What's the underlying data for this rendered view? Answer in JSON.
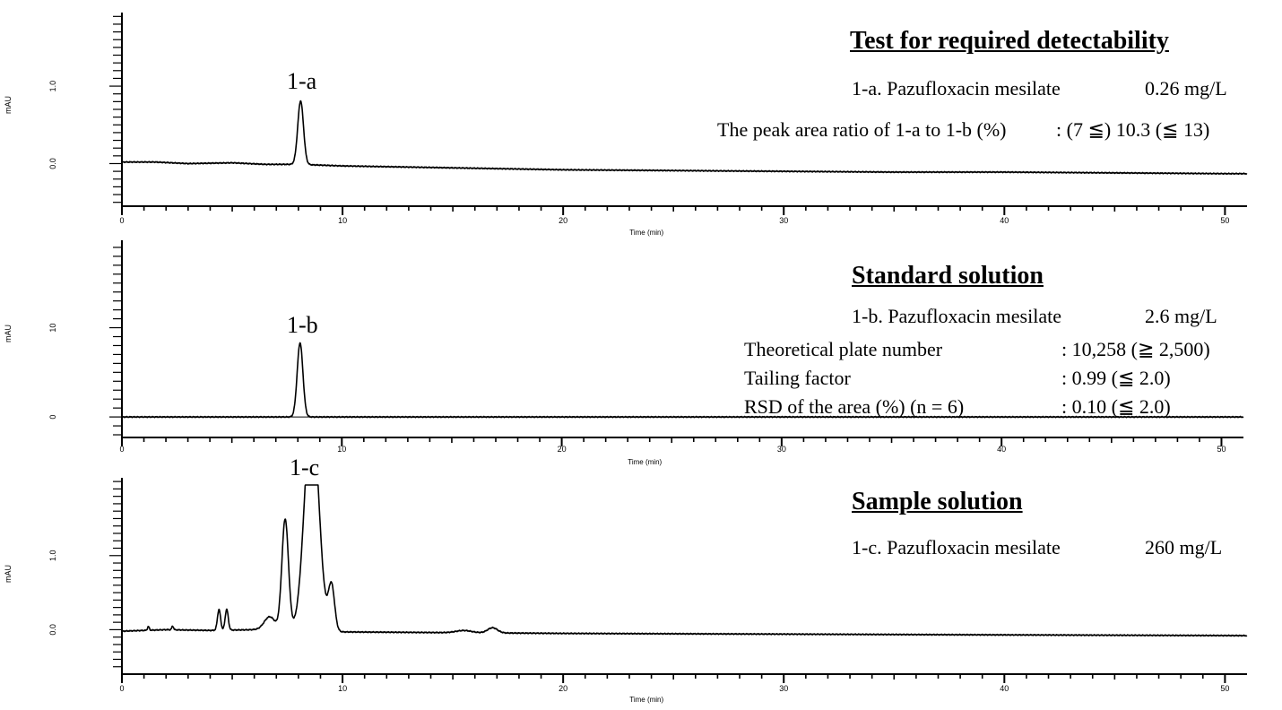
{
  "chart_data": [
    {
      "type": "line",
      "name": "detectability",
      "xlabel": "Time (min)",
      "ylabel": "mAU",
      "xlim": [
        0,
        51
      ],
      "ylim": [
        -0.55,
        1.95
      ],
      "xticks": [
        0,
        10,
        20,
        30,
        40,
        50
      ],
      "yticks": [
        0.0,
        1.0
      ],
      "ytick_labels": [
        "0.0",
        "1.0"
      ],
      "baseline": [
        [
          0,
          0.02
        ],
        [
          1.5,
          0.02
        ],
        [
          3,
          0.0
        ],
        [
          5,
          0.01
        ],
        [
          6.5,
          -0.01
        ],
        [
          8,
          -0.01
        ],
        [
          10,
          -0.03
        ],
        [
          14,
          -0.05
        ],
        [
          20,
          -0.08
        ],
        [
          25,
          -0.09
        ],
        [
          30,
          -0.1
        ],
        [
          35,
          -0.11
        ],
        [
          40,
          -0.11
        ],
        [
          45,
          -0.12
        ],
        [
          50,
          -0.13
        ],
        [
          51,
          -0.13
        ]
      ],
      "peaks": [
        {
          "rt": 8.1,
          "height": 0.82,
          "width": 0.13
        }
      ],
      "peak_label": {
        "text": "1-a",
        "x": 8.1
      },
      "annotation": {
        "title": "Test for required detectability",
        "lines": [
          {
            "label": "1-a. Pazufloxacin mesilate",
            "value": "0.26 mg/L"
          },
          {
            "label": "The peak area ratio of 1-a to 1-b (%)",
            "value": ": (7 ≦) 10.3 (≦ 13)"
          }
        ]
      }
    },
    {
      "type": "line",
      "name": "standard",
      "xlabel": "Time (min)",
      "ylabel": "mAU",
      "xlim": [
        0,
        51
      ],
      "ylim": [
        -2.3,
        19.8
      ],
      "xticks": [
        0,
        10,
        20,
        30,
        40,
        50
      ],
      "yticks": [
        0,
        10
      ],
      "ytick_labels": [
        "0",
        "10"
      ],
      "baseline": [
        [
          0,
          0
        ],
        [
          51,
          0
        ]
      ],
      "peaks": [
        {
          "rt": 8.1,
          "height": 8.3,
          "width": 0.13
        }
      ],
      "peak_label": {
        "text": "1-b",
        "x": 8.1
      },
      "annotation": {
        "title": "Standard solution",
        "lines": [
          {
            "label": "1-b. Pazufloxacin mesilate",
            "value": "2.6 mg/L"
          },
          {
            "label": "Theoretical plate number",
            "value": ": 10,258 (≧ 2,500)"
          },
          {
            "label": "Tailing factor",
            "value": ": 0.99 (≦ 2.0)"
          },
          {
            "label": "RSD of the area (%) (n = 6)",
            "value": ": 0.10 (≦ 2.0)"
          }
        ]
      }
    },
    {
      "type": "line",
      "name": "sample",
      "xlabel": "Time (min)",
      "ylabel": "mAU",
      "xlim": [
        0,
        51
      ],
      "ylim": [
        -0.6,
        2.05
      ],
      "xticks": [
        0,
        10,
        20,
        30,
        40,
        50
      ],
      "yticks": [
        0.0,
        1.0
      ],
      "ytick_labels": [
        "0.0",
        "1.0"
      ],
      "baseline": [
        [
          0,
          -0.02
        ],
        [
          2,
          0.0
        ],
        [
          4,
          -0.01
        ],
        [
          6,
          0.0
        ],
        [
          10,
          -0.03
        ],
        [
          15,
          -0.04
        ],
        [
          20,
          -0.05
        ],
        [
          30,
          -0.06
        ],
        [
          40,
          -0.07
        ],
        [
          51,
          -0.08
        ]
      ],
      "peaks": [
        {
          "rt": 1.2,
          "height": 0.05,
          "width": 0.04
        },
        {
          "rt": 2.3,
          "height": 0.05,
          "width": 0.04
        },
        {
          "rt": 4.4,
          "height": 0.28,
          "width": 0.07
        },
        {
          "rt": 4.75,
          "height": 0.28,
          "width": 0.07
        },
        {
          "rt": 6.7,
          "height": 0.18,
          "width": 0.25
        },
        {
          "rt": 7.4,
          "height": 1.5,
          "width": 0.15
        },
        {
          "rt": 8.6,
          "height": 3.0,
          "width": 0.32
        },
        {
          "rt": 9.5,
          "height": 0.61,
          "width": 0.14
        },
        {
          "rt": 15.5,
          "height": 0.03,
          "width": 0.35
        },
        {
          "rt": 16.8,
          "height": 0.07,
          "width": 0.22
        }
      ],
      "clip_top": true,
      "peak_label": {
        "text": "1-c",
        "x": 8.6
      },
      "annotation": {
        "title": "Sample solution",
        "lines": [
          {
            "label": "1-c. Pazufloxacin mesilate",
            "value": "260 mg/L"
          }
        ]
      }
    }
  ]
}
